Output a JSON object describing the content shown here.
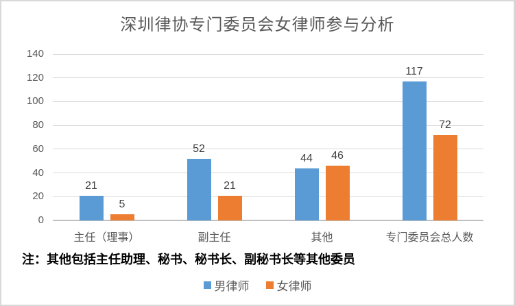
{
  "title": "深圳律协专门委员会女律师参与分析",
  "note": "注：其他包括主任助理、秘书、秘书长、副秘书长等其他委员",
  "colors": {
    "male_series": "#5B9BD5",
    "female_series": "#ED7D31",
    "gridline": "#D9D9D9",
    "axis_line": "#BFBFBF",
    "axis_text": "#595959",
    "title_text": "#595959",
    "data_label_text": "#404040",
    "frame_border": "#D9D9D9"
  },
  "legend": {
    "items": [
      {
        "label": "男律师",
        "color": "#5B9BD5"
      },
      {
        "label": "女律师",
        "color": "#ED7D31"
      }
    ],
    "position": "bottom-center"
  },
  "chart_data": {
    "type": "bar",
    "title": "深圳律协专门委员会女律师参与分析",
    "categories": [
      "主任（理事）",
      "副主任",
      "其他",
      "专门委员会总人数"
    ],
    "series": [
      {
        "name": "男律师",
        "color": "#5B9BD5",
        "values": [
          21,
          52,
          44,
          117
        ]
      },
      {
        "name": "女律师",
        "color": "#ED7D31",
        "values": [
          5,
          21,
          46,
          72
        ]
      }
    ],
    "xlabel": "",
    "ylabel": "",
    "ylim": [
      0,
      140
    ],
    "ytick_interval": 20,
    "yticks": [
      0,
      20,
      40,
      60,
      80,
      100,
      120,
      140
    ],
    "grid": true,
    "data_labels": true,
    "legend_position": "bottom",
    "note": "注：其他包括主任助理、秘书、秘书长、副秘书长等其他委员"
  }
}
